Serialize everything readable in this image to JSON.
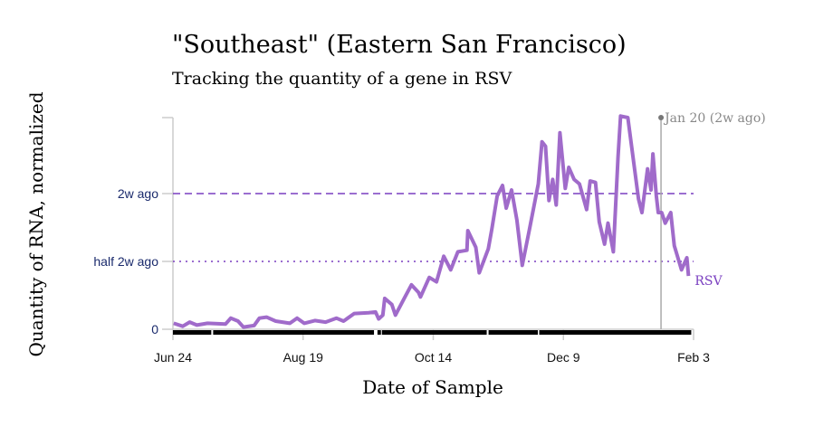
{
  "chart_data": {
    "type": "line",
    "title": "\"Southeast\" (Eastern San Francisco)",
    "subtitle": "Tracking the quantity of a gene in RSV",
    "xlabel": "Date of Sample",
    "ylabel": "Quantity of RNA, normalized",
    "x_unit": "days since Jun 24",
    "xlim": [
      0,
      224
    ],
    "ylim": [
      0,
      1.56
    ],
    "x_ticks": [
      {
        "day": 0,
        "label": "Jun 24"
      },
      {
        "day": 56,
        "label": "Aug 19"
      },
      {
        "day": 112,
        "label": "Oct 14"
      },
      {
        "day": 168,
        "label": "Dec 9"
      },
      {
        "day": 224,
        "label": "Feb 3"
      }
    ],
    "y_ticks": [
      {
        "value": 0,
        "label": "0"
      },
      {
        "value": 0.5,
        "label": "half 2w ago"
      },
      {
        "value": 1,
        "label": "2w ago"
      },
      {
        "value": 1.56,
        "label": ""
      }
    ],
    "reference_lines": [
      {
        "value": 1,
        "style": "dashed",
        "label": "2w ago"
      },
      {
        "value": 0.5,
        "style": "dotted",
        "label": "half 2w ago"
      }
    ],
    "annotation": {
      "day": 210,
      "label": "Jan 20 (2w ago)"
    },
    "sample_coverage": [
      [
        0,
        16.5
      ],
      [
        17.3,
        86.5
      ],
      [
        88,
        89.5
      ],
      [
        89.9,
        135
      ],
      [
        135.8,
        157
      ],
      [
        157.6,
        223
      ]
    ],
    "series": [
      {
        "name": "RSV",
        "color": "#9b63c7",
        "x": [
          0.3,
          4.2,
          7.2,
          10.3,
          14.9,
          22.6,
          24.9,
          28.0,
          30.3,
          34.9,
          37.2,
          40.3,
          44.2,
          50.3,
          53.4,
          56.5,
          61.1,
          65.7,
          70.3,
          73.4,
          78.0,
          84.2,
          87.2,
          88.5,
          90.3,
          91.1,
          94.2,
          95.7,
          99.5,
          102.6,
          105.7,
          106.5,
          110.3,
          113.4,
          116.5,
          119.5,
          122.6,
          126.5,
          126.9,
          130.3,
          131.8,
          135.7,
          137.2,
          139.5,
          141.8,
          143.4,
          145.7,
          148.0,
          150.3,
          153.4,
          157.2,
          158.8,
          160.3,
          161.8,
          163.4,
          164.9,
          166.5,
          168.8,
          170.3,
          172.6,
          174.9,
          178.0,
          179.5,
          181.8,
          183.4,
          185.7,
          187.2,
          189.5,
          191.5,
          192.6,
          195.7,
          200.3,
          201.8,
          204.2,
          205.7,
          206.5,
          208.0,
          208.8,
          210.3,
          211.8,
          214.2,
          215.7,
          218.8,
          221.1,
          221.8
        ],
        "y": [
          0.044,
          0.022,
          0.053,
          0.031,
          0.044,
          0.038,
          0.082,
          0.06,
          0.016,
          0.027,
          0.082,
          0.089,
          0.06,
          0.044,
          0.082,
          0.044,
          0.064,
          0.053,
          0.082,
          0.06,
          0.116,
          0.122,
          0.127,
          0.076,
          0.104,
          0.227,
          0.182,
          0.104,
          0.227,
          0.327,
          0.271,
          0.238,
          0.382,
          0.349,
          0.538,
          0.438,
          0.571,
          0.582,
          0.727,
          0.604,
          0.416,
          0.593,
          0.738,
          0.982,
          1.06,
          0.893,
          1.027,
          0.804,
          0.471,
          0.738,
          1.071,
          1.382,
          1.349,
          0.949,
          1.104,
          0.916,
          1.449,
          1.038,
          1.193,
          1.104,
          1.071,
          0.882,
          1.093,
          1.082,
          0.793,
          0.627,
          0.782,
          0.571,
          1.271,
          1.571,
          1.56,
          0.96,
          0.86,
          1.182,
          1.027,
          1.293,
          0.982,
          0.86,
          0.86,
          0.782,
          0.86,
          0.616,
          0.438,
          0.527,
          0.393
        ]
      }
    ],
    "grid": false,
    "legend": "inline-end-label"
  }
}
